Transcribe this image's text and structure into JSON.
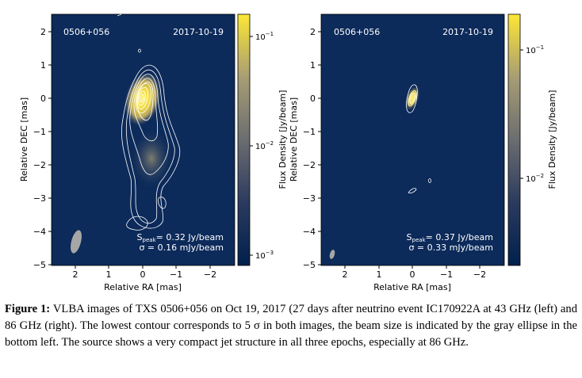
{
  "figure": {
    "panels": [
      {
        "source": "0506+056",
        "date": "2017-10-19",
        "peak_line": "S<tspan baseline-shift='sub' font-size='7'>peak</tspan> = 0.32 Jy/beam",
        "peak_text": "= 0.32 Jy/beam",
        "sigma_text": "σ = 0.16 mJy/beam",
        "x_label": "Relative RA [mas]",
        "y_label": "Relative DEC [mas]",
        "colorbar_label": "Flux Density [Jy/beam]",
        "x_ticks": [
          "2",
          "1",
          "0",
          "−1",
          "−2"
        ],
        "y_ticks": [
          "2",
          "1",
          "0",
          "−1",
          "−2",
          "−3",
          "−4",
          "−5"
        ],
        "colorbar_ticks": [
          "10⁻¹",
          "10⁻²",
          "10⁻³"
        ],
        "colorbar_tick_labels": [
          "10",
          "10",
          "10"
        ],
        "colorbar_tick_exps": [
          "−1",
          "−2",
          "−3"
        ]
      },
      {
        "source": "0506+056",
        "date": "2017-10-19",
        "peak_text": "= 0.37 Jy/beam",
        "sigma_text": "σ = 0.33 mJy/beam",
        "x_label": "Relative RA [mas]",
        "y_label": "Relative DEC [mas]",
        "colorbar_label": "Flux Density [Jy/beam]",
        "x_ticks": [
          "2",
          "1",
          "0",
          "−1",
          "−2"
        ],
        "y_ticks": [
          "2",
          "1",
          "0",
          "−1",
          "−2",
          "−3",
          "−4",
          "−5"
        ],
        "colorbar_tick_labels": [
          "10",
          "10"
        ],
        "colorbar_tick_exps": [
          "−1",
          "−2"
        ]
      }
    ],
    "colors": {
      "background": "#0c2a5a",
      "peak": "#f5e23a",
      "contour": "#ffffff",
      "beam": "#a6a6a6"
    }
  },
  "caption": {
    "label": "Figure 1:",
    "text": "VLBA images of TXS 0506+056 on Oct 19, 2017 (27 days after neutrino event IC170922A at 43 GHz (left) and 86 GHz (right). The lowest contour corresponds to 5 σ in both images, the beam size is indicated by the gray ellipse in the bottom left. The source shows a very compact jet structure in all three epochs, especially at 86 GHz."
  }
}
